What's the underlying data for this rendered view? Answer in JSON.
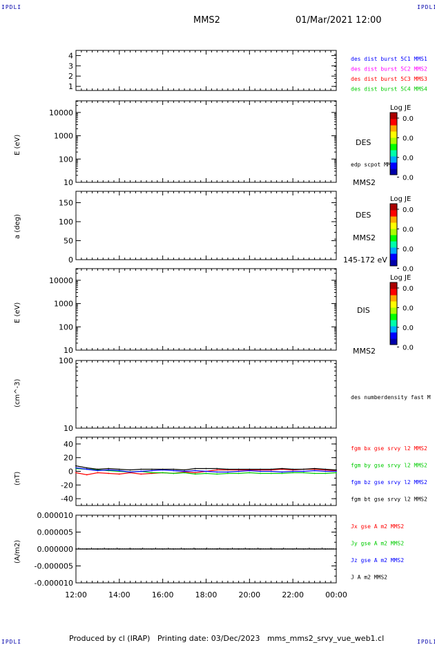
{
  "corner_mark": "IPDLI",
  "header": {
    "spacecraft": "MMS2",
    "datetime": "01/Mar/2021 12:00"
  },
  "footer": {
    "text": "Produced by cl (IRAP)   Printing date: 03/Dec/2023   mms_mms2_srvy_vue_web1.cl"
  },
  "colors": {
    "blue": "#0000ff",
    "magenta": "#ff00ff",
    "red": "#ff0000",
    "green": "#00cc00",
    "black": "#000000"
  },
  "chart_data": [
    {
      "id": "p1",
      "type": "line",
      "yticks": [
        "1",
        "2",
        "3",
        "4"
      ],
      "ylim": [
        0.6,
        4.5
      ],
      "series": [
        {
          "name": "des dist burst 5C1 MMS1",
          "color": "#0000ff",
          "values": []
        },
        {
          "name": "des dist burst 5C2 MMS2",
          "color": "#ff00ff",
          "values": []
        },
        {
          "name": "des dist burst 5C3 MMS3",
          "color": "#ff0000",
          "values": []
        },
        {
          "name": "des dist burst 5C4 MMS4",
          "color": "#00cc00",
          "values": []
        }
      ]
    },
    {
      "id": "p2",
      "type": "heatmap",
      "ylabel": "E (eV)",
      "yscale": "log",
      "yticks": [
        "10",
        "100",
        "1000",
        "10000"
      ],
      "side_labels": [
        "DES",
        "edp scpot MMS2",
        "MMS2"
      ],
      "colorbar": {
        "title": "Log JE",
        "ticks": [
          "0.0",
          "0.0",
          "0.0",
          "0.0"
        ]
      }
    },
    {
      "id": "p3",
      "type": "heatmap",
      "ylabel": "a (deg)",
      "yticks": [
        "0",
        "50",
        "100",
        "150"
      ],
      "ylim": [
        0,
        180
      ],
      "side_labels": [
        "DES",
        "MMS2",
        "145-172 eV"
      ],
      "colorbar": {
        "title": "Log JE",
        "ticks": [
          "0.0",
          "0.0",
          "0.0",
          "0.0"
        ]
      }
    },
    {
      "id": "p4",
      "type": "heatmap",
      "ylabel": "E (eV)",
      "yscale": "log",
      "yticks": [
        "10",
        "100",
        "1000",
        "10000"
      ],
      "side_labels": [
        "DIS",
        "MMS2"
      ],
      "colorbar": {
        "title": "Log JE",
        "ticks": [
          "0.0",
          "0.0",
          "0.0",
          "0.0"
        ]
      }
    },
    {
      "id": "p5",
      "type": "line",
      "ylabel": "(cm^-3)",
      "yscale": "log",
      "yticks": [
        "10",
        "100"
      ],
      "series": [
        {
          "name": "des numberdensity fast M",
          "color": "#000000",
          "values": []
        }
      ]
    },
    {
      "id": "p6",
      "type": "line",
      "ylabel": "(nT)",
      "yticks": [
        "-40",
        "-20",
        "0",
        "20",
        "40"
      ],
      "ylim": [
        -50,
        50
      ],
      "x": [
        "12:00",
        "12:30",
        "13:00",
        "13:30",
        "14:00",
        "14:30",
        "15:00",
        "15:30",
        "16:00",
        "16:30",
        "17:00",
        "17:30",
        "18:00",
        "18:30",
        "19:00",
        "19:30",
        "20:00",
        "20:30",
        "21:00",
        "21:30",
        "22:00",
        "22:30",
        "23:00",
        "23:30",
        "00:00"
      ],
      "series": [
        {
          "name": "fgm bx gse srvy l2 MMS2",
          "color": "#ff0000",
          "values": [
            -2,
            -5,
            -2,
            -3,
            -4,
            -2,
            -4,
            -3,
            -2,
            -3,
            -1,
            -2,
            0,
            2,
            2,
            2,
            2,
            2,
            2,
            3,
            2,
            3,
            3,
            2,
            1
          ]
        },
        {
          "name": "fgm by gse srvy l2 MMS2",
          "color": "#00cc00",
          "values": [
            4,
            3,
            2,
            1,
            0,
            -1,
            0,
            -2,
            -2,
            -3,
            -2,
            -4,
            -3,
            -4,
            -3,
            -3,
            -2,
            -3,
            -3,
            -3,
            -2,
            -2,
            -3,
            -3,
            -2
          ]
        },
        {
          "name": "fgm bz gse srvy l2 MMS2",
          "color": "#0000ff",
          "values": [
            5,
            3,
            1,
            2,
            1,
            -1,
            0,
            1,
            2,
            1,
            0,
            1,
            0,
            -1,
            -1,
            0,
            1,
            0,
            0,
            -1,
            0,
            0,
            1,
            0,
            0
          ]
        },
        {
          "name": "fgm bt gse srvy l2 MMS2",
          "color": "#000000",
          "values": [
            8,
            5,
            3,
            4,
            3,
            2,
            3,
            3,
            3,
            3,
            2,
            4,
            4,
            4,
            3,
            3,
            3,
            3,
            3,
            4,
            3,
            3,
            4,
            3,
            2
          ]
        }
      ]
    },
    {
      "id": "p7",
      "type": "line",
      "ylabel": "(A/m2)",
      "yticks": [
        "-0.000010",
        "-0.000005",
        "0.000000",
        "0.000005",
        "0.000010"
      ],
      "ylim": [
        -1e-05,
        1e-05
      ],
      "series": [
        {
          "name": "Jx gse A m2 MMS2",
          "color": "#ff0000",
          "values": []
        },
        {
          "name": "Jy gse A m2 MMS2",
          "color": "#00cc00",
          "values": []
        },
        {
          "name": "Jz gse A m2 MMS2",
          "color": "#0000ff",
          "values": []
        },
        {
          "name": "J A m2 MMS2",
          "color": "#000000",
          "values": [
            0,
            0,
            0,
            0,
            0,
            0,
            0,
            0,
            0,
            0,
            0,
            0,
            0,
            0,
            0,
            0,
            0,
            0,
            0,
            0,
            0,
            0,
            0,
            0,
            0
          ]
        }
      ]
    }
  ],
  "xaxis": {
    "ticks": [
      "12:00",
      "14:00",
      "16:00",
      "18:00",
      "20:00",
      "22:00",
      "00:00"
    ]
  }
}
